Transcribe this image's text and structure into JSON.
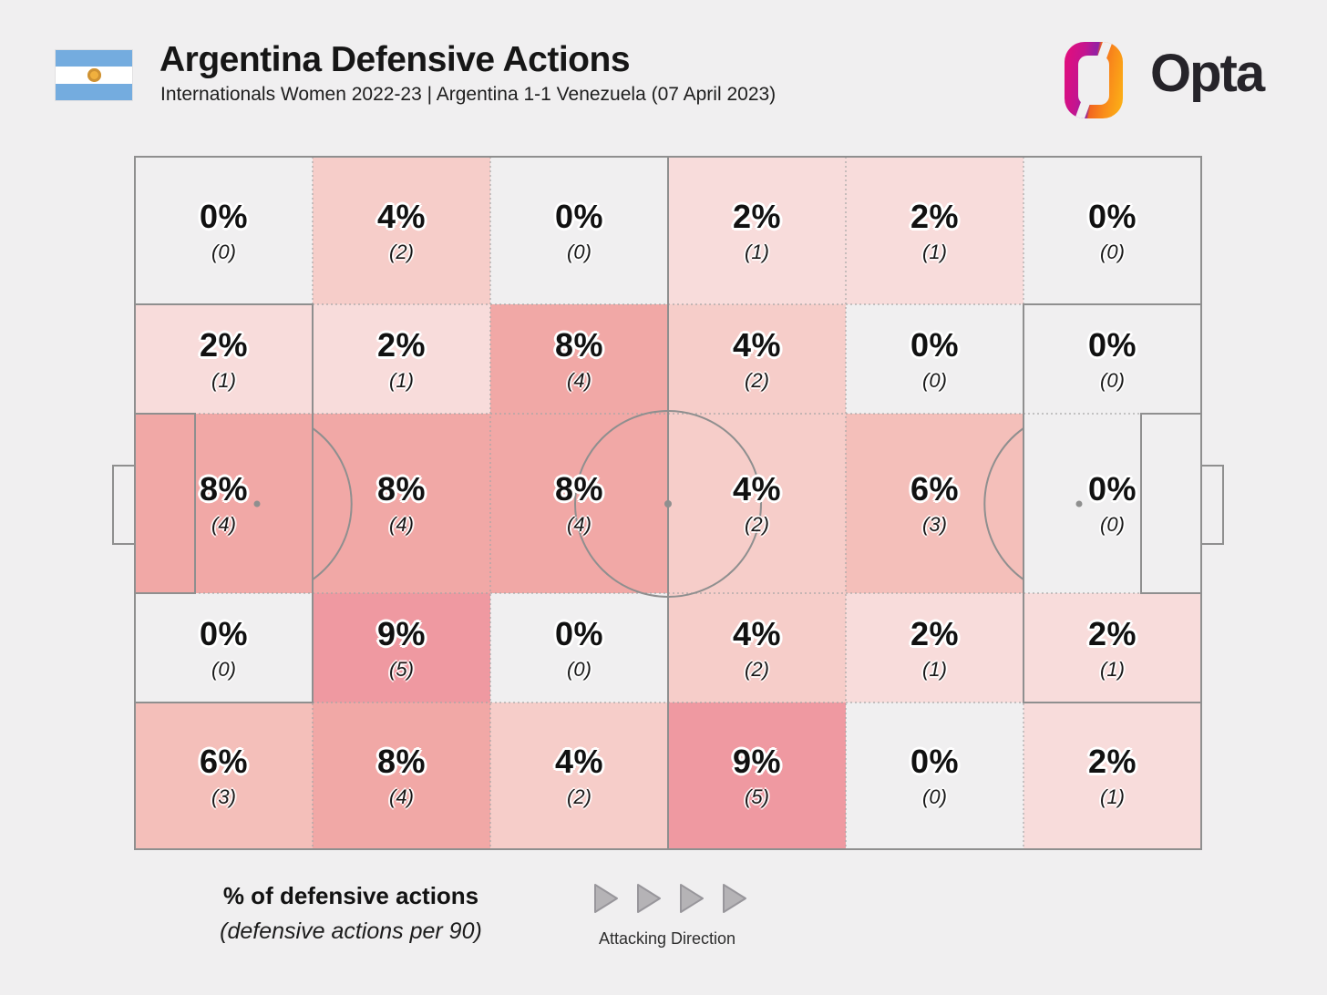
{
  "header": {
    "title": "Argentina Defensive Actions",
    "subtitle": "Internationals Women 2022-23 | Argentina 1-1 Venezuela (07 April 2023)",
    "flag": "argentina-flag",
    "logo_text": "Opta"
  },
  "legend": {
    "line1": "% of defensive actions",
    "line2": "(defensive actions per 90)",
    "attacking_direction": "Attacking Direction"
  },
  "chart_data": {
    "type": "heatmap",
    "title": "Argentina Defensive Actions",
    "subtitle": "Internationals Women 2022-23 | Argentina 1-1 Venezuela (07 April 2023)",
    "description": "Football pitch zone heatmap, 5 rows x 6 columns, attacking direction left to right",
    "grid": {
      "rows": 5,
      "cols": 6
    },
    "percent": [
      [
        0,
        4,
        0,
        2,
        2,
        0
      ],
      [
        2,
        2,
        8,
        4,
        0,
        0
      ],
      [
        8,
        8,
        8,
        4,
        6,
        0
      ],
      [
        0,
        9,
        0,
        4,
        2,
        2
      ],
      [
        6,
        8,
        4,
        9,
        0,
        2
      ]
    ],
    "count": [
      [
        0,
        2,
        0,
        1,
        1,
        0
      ],
      [
        1,
        1,
        4,
        2,
        0,
        0
      ],
      [
        4,
        4,
        4,
        2,
        3,
        0
      ],
      [
        0,
        5,
        0,
        2,
        1,
        1
      ],
      [
        3,
        4,
        2,
        5,
        0,
        1
      ]
    ],
    "percent_labels": [
      [
        "0%",
        "4%",
        "0%",
        "2%",
        "2%",
        "0%"
      ],
      [
        "2%",
        "2%",
        "8%",
        "4%",
        "0%",
        "0%"
      ],
      [
        "8%",
        "8%",
        "8%",
        "4%",
        "6%",
        "0%"
      ],
      [
        "0%",
        "9%",
        "0%",
        "4%",
        "2%",
        "2%"
      ],
      [
        "6%",
        "8%",
        "4%",
        "9%",
        "0%",
        "2%"
      ]
    ],
    "count_labels": [
      [
        "(0)",
        "(2)",
        "(0)",
        "(1)",
        "(1)",
        "(0)"
      ],
      [
        "(1)",
        "(1)",
        "(4)",
        "(2)",
        "(0)",
        "(0)"
      ],
      [
        "(4)",
        "(4)",
        "(4)",
        "(2)",
        "(3)",
        "(0)"
      ],
      [
        "(0)",
        "(5)",
        "(0)",
        "(2)",
        "(1)",
        "(1)"
      ],
      [
        "(3)",
        "(4)",
        "(2)",
        "(5)",
        "(0)",
        "(1)"
      ]
    ],
    "unit_primary": "% of defensive actions",
    "unit_secondary": "defensive actions per 90",
    "value_colors": {
      "0": "#f0eff0",
      "2": "#f8dcdb",
      "4": "#f6cdc9",
      "6": "#f4bfba",
      "8": "#f1a8a6",
      "9": "#ef99a1"
    }
  },
  "colors": {
    "background": "#f0eff0",
    "pitch_line": "#8f8f8f",
    "grid_dotted": "#a6a6a6",
    "arrow_fill": "#b5b3b6",
    "arrow_stroke": "#98969b",
    "flag_blue": "#74acdf",
    "flag_white": "#ffffff",
    "sun_gold": "#f0b03e",
    "logo_text_color": "#26242a"
  }
}
